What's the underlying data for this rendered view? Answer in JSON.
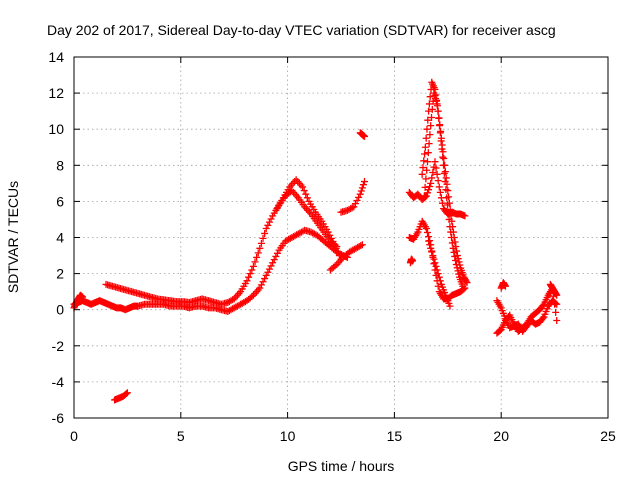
{
  "chart_data": {
    "type": "scatter",
    "title": "Day 202 of 2017, Sidereal Day-to-day VTEC variation (SDTVAR) for receiver ascg",
    "xlabel": "GPS time / hours",
    "ylabel": "SDTVAR / TECUs",
    "xlim": [
      0,
      25
    ],
    "ylim": [
      -6,
      14
    ],
    "xticks": [
      "0",
      "5",
      "10",
      "15",
      "20",
      "25"
    ],
    "yticks": [
      "-6",
      "-4",
      "-2",
      "0",
      "2",
      "4",
      "6",
      "8",
      "10",
      "12",
      "14"
    ],
    "grid": true,
    "marker": "+",
    "series": [
      {
        "name": "SDTVAR",
        "color": "#ff0000",
        "tracks": [
          {
            "x": [
              0.0,
              0.2,
              0.4,
              0.6,
              0.8,
              1.0,
              1.2,
              1.4,
              1.6,
              1.8,
              2.0,
              2.2,
              2.4,
              2.6,
              2.8,
              3.0,
              3.3,
              3.6,
              3.9,
              4.2,
              4.5,
              4.8,
              5.1,
              5.4,
              5.7,
              6.0,
              6.3,
              6.6,
              6.9,
              7.2,
              7.5,
              7.8,
              8.1,
              8.4,
              8.7,
              9.0,
              9.3,
              9.6,
              9.9,
              10.2,
              10.5,
              10.8,
              11.1,
              11.4,
              11.7,
              12.0,
              12.3,
              12.6,
              12.8
            ],
            "y": [
              0.3,
              0.4,
              0.5,
              0.4,
              0.3,
              0.4,
              0.5,
              0.4,
              0.3,
              0.2,
              0.1,
              0.1,
              0.0,
              0.1,
              0.2,
              0.2,
              0.3,
              0.3,
              0.3,
              0.3,
              0.2,
              0.2,
              0.2,
              0.1,
              0.2,
              0.2,
              0.1,
              0.1,
              0.0,
              -0.1,
              0.1,
              0.3,
              0.5,
              0.8,
              1.2,
              1.9,
              2.6,
              3.3,
              3.8,
              4.0,
              4.2,
              4.4,
              4.3,
              4.1,
              3.8,
              3.5,
              3.2,
              3.0,
              2.9
            ]
          },
          {
            "x": [
              1.5,
              1.8,
              2.1,
              2.4,
              2.7,
              3.0,
              3.3,
              3.6,
              3.9,
              4.2,
              4.5,
              4.8,
              5.1,
              5.4,
              5.7,
              6.0,
              6.3,
              6.6,
              6.9,
              7.2,
              7.5,
              7.8,
              8.1,
              8.4,
              8.7,
              9.0,
              9.3,
              9.6,
              9.9,
              10.2,
              10.5,
              10.8,
              11.1,
              11.4,
              11.7,
              12.0,
              12.3
            ],
            "y": [
              1.4,
              1.3,
              1.2,
              1.1,
              1.0,
              0.9,
              0.8,
              0.7,
              0.6,
              0.55,
              0.5,
              0.45,
              0.45,
              0.4,
              0.5,
              0.6,
              0.5,
              0.4,
              0.3,
              0.4,
              0.6,
              1.0,
              1.6,
              2.4,
              3.4,
              4.5,
              5.2,
              5.8,
              6.3,
              6.6,
              6.2,
              5.7,
              5.3,
              4.8,
              4.3,
              3.8,
              3.5
            ]
          },
          {
            "x": [
              9.5,
              9.8,
              10.1,
              10.4,
              10.7,
              11.0,
              11.3,
              11.6,
              11.9,
              12.2,
              12.5
            ],
            "y": [
              5.6,
              6.2,
              6.8,
              7.2,
              6.8,
              6.0,
              5.4,
              4.9,
              4.3,
              3.6,
              2.8
            ]
          },
          {
            "x": [
              12.0,
              12.3,
              12.6,
              12.9,
              13.2,
              13.5
            ],
            "y": [
              2.2,
              2.5,
              2.9,
              3.2,
              3.4,
              3.6
            ]
          },
          {
            "x": [
              12.5,
              12.8,
              13.1,
              13.4,
              13.6
            ],
            "y": [
              5.4,
              5.5,
              5.7,
              6.4,
              7.1
            ]
          },
          {
            "x": [
              13.4,
              13.5,
              13.6
            ],
            "y": [
              9.8,
              9.7,
              9.6
            ]
          },
          {
            "x": [
              1.9,
              2.1,
              2.3,
              2.5
            ],
            "y": [
              -5.0,
              -4.9,
              -4.8,
              -4.6
            ]
          },
          {
            "x": [
              0.0,
              0.1,
              0.2,
              0.3,
              0.4
            ],
            "y": [
              0.1,
              0.4,
              0.6,
              0.8,
              0.7
            ]
          },
          {
            "x": [
              15.7,
              15.9,
              16.1,
              16.3,
              16.5,
              16.7,
              16.9,
              17.1,
              17.3,
              17.5,
              17.7,
              17.9,
              18.1,
              18.3
            ],
            "y": [
              6.5,
              6.2,
              6.4,
              6.1,
              6.3,
              7.0,
              8.2,
              6.8,
              5.6,
              5.3,
              5.4,
              5.3,
              5.3,
              5.2
            ]
          },
          {
            "x": [
              16.3,
              16.45,
              16.6,
              16.75,
              16.9,
              17.05,
              17.2,
              17.35,
              17.5,
              17.65,
              17.8,
              17.95,
              18.1,
              18.25,
              18.4
            ],
            "y": [
              7.5,
              9.0,
              11.0,
              12.6,
              12.2,
              11.0,
              9.5,
              8.0,
              6.6,
              5.2,
              4.0,
              3.0,
              2.3,
              1.8,
              1.5
            ]
          },
          {
            "x": [
              16.4,
              16.55,
              16.7,
              16.85,
              17.0,
              17.15,
              17.3,
              17.45,
              17.6,
              17.75,
              17.9,
              18.05,
              18.2
            ],
            "y": [
              6.3,
              8.2,
              10.2,
              12.0,
              11.4,
              9.8,
              8.0,
              6.2,
              4.6,
              3.4,
              2.5,
              1.8,
              1.3
            ]
          },
          {
            "x": [
              15.7,
              15.9,
              16.1,
              16.3,
              16.5,
              16.7,
              16.9,
              17.1,
              17.3,
              17.5,
              17.7,
              17.9,
              18.1,
              18.3
            ],
            "y": [
              4.0,
              3.9,
              4.3,
              4.9,
              4.5,
              3.6,
              2.2,
              1.0,
              0.6,
              0.6,
              0.8,
              0.9,
              1.0,
              1.2
            ]
          },
          {
            "x": [
              16.6,
              16.8,
              17.0,
              17.2,
              17.4,
              17.6
            ],
            "y": [
              3.8,
              3.0,
              2.2,
              1.4,
              0.8,
              0.2
            ]
          },
          {
            "x": [
              15.75,
              15.8,
              15.85
            ],
            "y": [
              2.6,
              2.8,
              2.7
            ]
          },
          {
            "x": [
              19.8,
              20.0,
              20.2,
              20.4,
              20.6,
              20.8,
              21.0,
              21.2,
              21.4,
              21.6,
              21.8,
              22.0,
              22.2,
              22.4,
              22.6
            ],
            "y": [
              0.5,
              0.1,
              -0.5,
              -1.0,
              -0.9,
              -0.8,
              -1.2,
              -0.9,
              -0.6,
              -0.8,
              -0.7,
              -0.4,
              0.2,
              0.5,
              0.3
            ]
          },
          {
            "x": [
              19.8,
              20.0,
              20.2,
              20.4,
              20.6,
              20.8,
              21.0,
              21.2,
              21.4,
              21.6,
              21.8,
              22.0,
              22.2,
              22.4,
              22.6
            ],
            "y": [
              -1.3,
              -1.1,
              -0.6,
              -0.3,
              -0.8,
              -1.2,
              -1.0,
              -0.8,
              -0.4,
              -0.2,
              0.0,
              0.3,
              0.8,
              1.2,
              -0.6
            ]
          },
          {
            "x": [
              20.0,
              20.1,
              20.2
            ],
            "y": [
              1.2,
              1.5,
              1.3
            ]
          },
          {
            "x": [
              22.3,
              22.4,
              22.5,
              22.6
            ],
            "y": [
              1.4,
              1.2,
              1.0,
              0.8
            ]
          }
        ]
      }
    ]
  }
}
